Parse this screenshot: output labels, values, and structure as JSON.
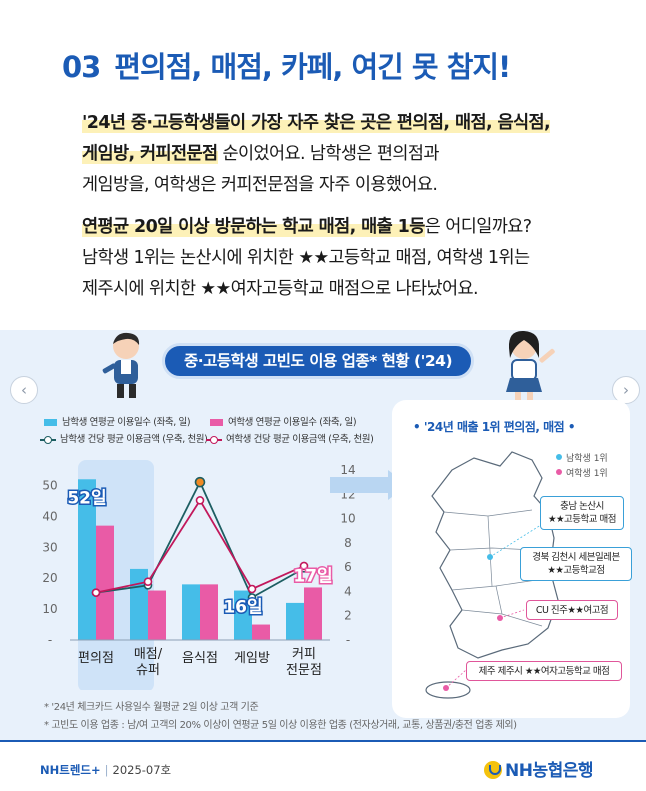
{
  "header": {
    "number": "03",
    "title": "편의점, 매점, 카페, 여긴 못 참지!"
  },
  "intro": {
    "line1_highlight": "'24년 중·고등학생들이 가장 자주 찾은 곳은 편의점, 매점, 음식점,",
    "line2_bold": "게임방, 커피전문점",
    "line2_rest": " 순이었어요. 남학생은 편의점과",
    "line3": "게임방을, 여학생은 커피전문점을 자주 이용했어요."
  },
  "question": {
    "line1_highlight": "연평균 20일 이상 방문하는 학교 매점, 매출 1등",
    "line1_rest": "은 어디일까요?",
    "line2": "남학생 1위는 논산시에 위치한 ★★고등학교 매점, 여학생 1위는",
    "line3": "제주시에 위치한 ★★여자고등학교 매점으로 나타났어요."
  },
  "infographic": {
    "title": "중·고등학생 고빈도 이용 업종* 현황 ('24)",
    "nav_prev": "‹",
    "nav_next": "›"
  },
  "legend": {
    "male_days": "남학생 연평균 이용일수 (좌축, 일)",
    "female_days": "여학생 연평균 이용일수 (좌축, 일)",
    "male_amount": "남학생 건당 평균 이용금액 (우축, 천원)",
    "female_amount": "여학생 건당 평균 이용금액 (우축, 천원)"
  },
  "colors": {
    "brand": "#1b5bb5",
    "male": "#45bde8",
    "female": "#e95ba6",
    "male_line": "#1d5e62",
    "female_line": "#c2185b",
    "highlight_marker": "#f08a24"
  },
  "chart_data": {
    "type": "bar",
    "categories": [
      "편의점",
      "매점/\n슈퍼",
      "음식점",
      "게임방",
      "커피\n전문점"
    ],
    "series": [
      {
        "name": "남학생 연평균 이용일수 (좌축, 일)",
        "type": "bar",
        "axis": "left",
        "values": [
          52,
          23,
          18,
          16,
          12
        ]
      },
      {
        "name": "여학생 연평균 이용일수 (좌축, 일)",
        "type": "bar",
        "axis": "left",
        "values": [
          37,
          16,
          18,
          5,
          17
        ]
      },
      {
        "name": "남학생 건당 평균 이용금액 (우축, 천원)",
        "type": "line",
        "axis": "right",
        "values": [
          3.9,
          4.5,
          13.0,
          3.5,
          5.9
        ]
      },
      {
        "name": "여학생 건당 평균 이용금액 (우축, 천원)",
        "type": "line",
        "axis": "right",
        "values": [
          3.9,
          4.8,
          11.5,
          4.2,
          6.1
        ]
      }
    ],
    "ylim_left": [
      0,
      55
    ],
    "ylim_right": [
      0,
      14
    ],
    "yticks_left": [
      "-",
      "10",
      "20",
      "30",
      "40",
      "50"
    ],
    "yticks_right": [
      "-",
      "2",
      "4",
      "6",
      "8",
      "10",
      "12",
      "14"
    ],
    "annotations": [
      {
        "label": "52일",
        "category": "편의점"
      },
      {
        "label": "16일",
        "category": "게임방"
      },
      {
        "label": "17일",
        "category": "커피\n전문점"
      }
    ]
  },
  "map": {
    "title": "• '24년 매출 1위 편의점, 매점 •",
    "legend_male": "남학생 1위",
    "legend_female": "여학생 1위",
    "callouts": [
      {
        "line1": "충남 논산시",
        "line2": "★★고등학교 매점",
        "gender": "m"
      },
      {
        "line1": "경북 김천시 세븐일레븐",
        "line2": "★★고등학교점",
        "gender": "m"
      },
      {
        "line1": "CU 진주★★여고점",
        "line2": "",
        "gender": "f"
      },
      {
        "line1": "제주 제주시 ★★여자고등학교 매점",
        "line2": "",
        "gender": "f"
      }
    ]
  },
  "notes": {
    "note1": "* '24년 체크카드 사용일수 월평균 2일 이상 고객 기준",
    "note2": "* 고빈도 이용 업종 : 남/여 고객의 20% 이상이 연평균 5일 이상 이용한 업종 (전자상거래, 교통, 상품권/충전 업종 제외)"
  },
  "footer": {
    "brand": "NH트렌드+",
    "separator": "|",
    "issue": "2025-07호",
    "logo": "NH농협은행"
  }
}
